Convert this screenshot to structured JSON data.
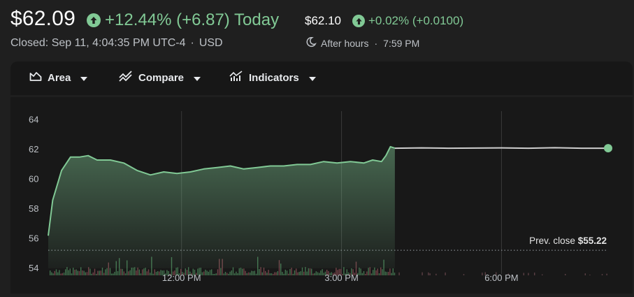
{
  "header": {
    "price": "$62.09",
    "change": "+12.44% (+6.87) Today",
    "closed_info": "Closed: Sep 11, 4:04:35 PM UTC-4",
    "currency": "USD",
    "after_hours_price": "$62.10",
    "after_hours_change": "+0.02% (+0.0100)",
    "after_hours_label": "After hours",
    "after_hours_time": "7:59 PM"
  },
  "toolbar": {
    "area_label": "Area",
    "compare_label": "Compare",
    "indicators_label": "Indicators"
  },
  "colors": {
    "positive": "#81c995",
    "line_afterhours": "#cfcfcf",
    "background": "#1f1f1f"
  },
  "chart_data": {
    "type": "area",
    "x_ticks": [
      "12:00 PM",
      "3:00 PM",
      "6:00 PM"
    ],
    "y_ticks": [
      54,
      56,
      58,
      60,
      62,
      64
    ],
    "ylim": [
      54,
      64.6
    ],
    "grid": true,
    "prev_close_label": "Prev. close",
    "prev_close_value": "$55.22",
    "prev_close": 55.22,
    "session_start": "9:30 AM",
    "market_close": "4:00 PM",
    "session_end": "8:00 PM",
    "series": [
      {
        "segment": "regular",
        "x": [
          "9:30 AM",
          "9:35 AM",
          "9:45 AM",
          "9:55 AM",
          "10:05 AM",
          "10:15 AM",
          "10:25 AM",
          "10:40 AM",
          "10:55 AM",
          "11:10 AM",
          "11:25 AM",
          "11:40 AM",
          "11:55 AM",
          "12:10 PM",
          "12:25 PM",
          "12:40 PM",
          "12:55 PM",
          "1:10 PM",
          "1:25 PM",
          "1:40 PM",
          "1:55 PM",
          "2:10 PM",
          "2:25 PM",
          "2:40 PM",
          "2:55 PM",
          "3:10 PM",
          "3:25 PM",
          "3:35 PM",
          "3:45 PM",
          "3:50 PM",
          "3:55 PM",
          "4:00 PM"
        ],
        "values": [
          56.2,
          58.6,
          60.6,
          61.5,
          61.5,
          61.6,
          61.3,
          61.3,
          61.1,
          60.6,
          60.3,
          60.5,
          60.4,
          60.5,
          60.7,
          60.8,
          60.9,
          60.7,
          60.8,
          60.9,
          60.9,
          61.0,
          61.0,
          61.2,
          61.1,
          61.2,
          61.1,
          61.3,
          61.2,
          61.6,
          62.2,
          62.1
        ]
      },
      {
        "segment": "after_hours",
        "x": [
          "4:00 PM",
          "4:30 PM",
          "5:00 PM",
          "5:30 PM",
          "6:00 PM",
          "6:30 PM",
          "7:00 PM",
          "7:30 PM",
          "8:00 PM"
        ],
        "values": [
          62.1,
          62.12,
          62.1,
          62.11,
          62.12,
          62.1,
          62.13,
          62.1,
          62.1
        ]
      }
    ]
  }
}
